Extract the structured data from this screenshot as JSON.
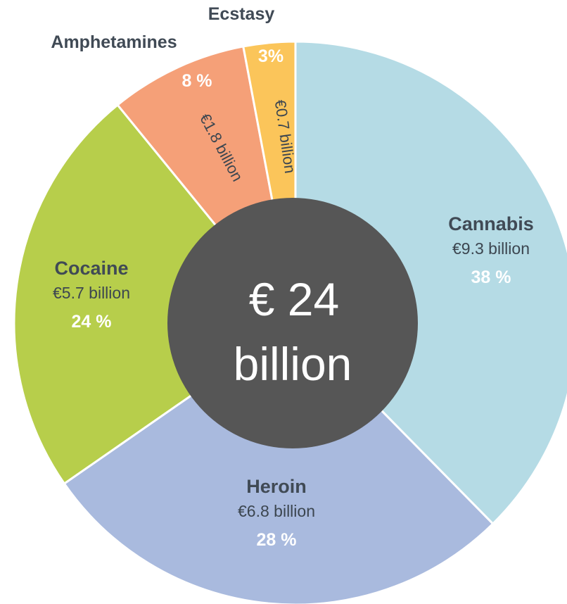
{
  "chart_data": {
    "type": "pie",
    "title": "",
    "center_label": {
      "line1": "€ 24",
      "line2": "billion"
    },
    "slices": [
      {
        "name": "Cannabis",
        "value_label": "€9.3 billion",
        "value": 9.3,
        "percent": 38,
        "percent_label": "38 %",
        "color": "#b5dbe5"
      },
      {
        "name": "Heroin",
        "value_label": "€6.8 billion",
        "value": 6.8,
        "percent": 28,
        "percent_label": "28 %",
        "color": "#a9bade"
      },
      {
        "name": "Cocaine",
        "value_label": "€5.7 billion",
        "value": 5.7,
        "percent": 24,
        "percent_label": "24 %",
        "color": "#b7ce4b"
      },
      {
        "name": "Amphetamines",
        "value_label": "€1.8 billion",
        "value": 1.8,
        "percent": 8,
        "percent_label": "8 %",
        "color": "#f5a078"
      },
      {
        "name": "Ecstasy",
        "value_label": "€0.7 billion",
        "value": 0.7,
        "percent": 3,
        "percent_label": "3%",
        "color": "#fbc55a"
      }
    ]
  }
}
